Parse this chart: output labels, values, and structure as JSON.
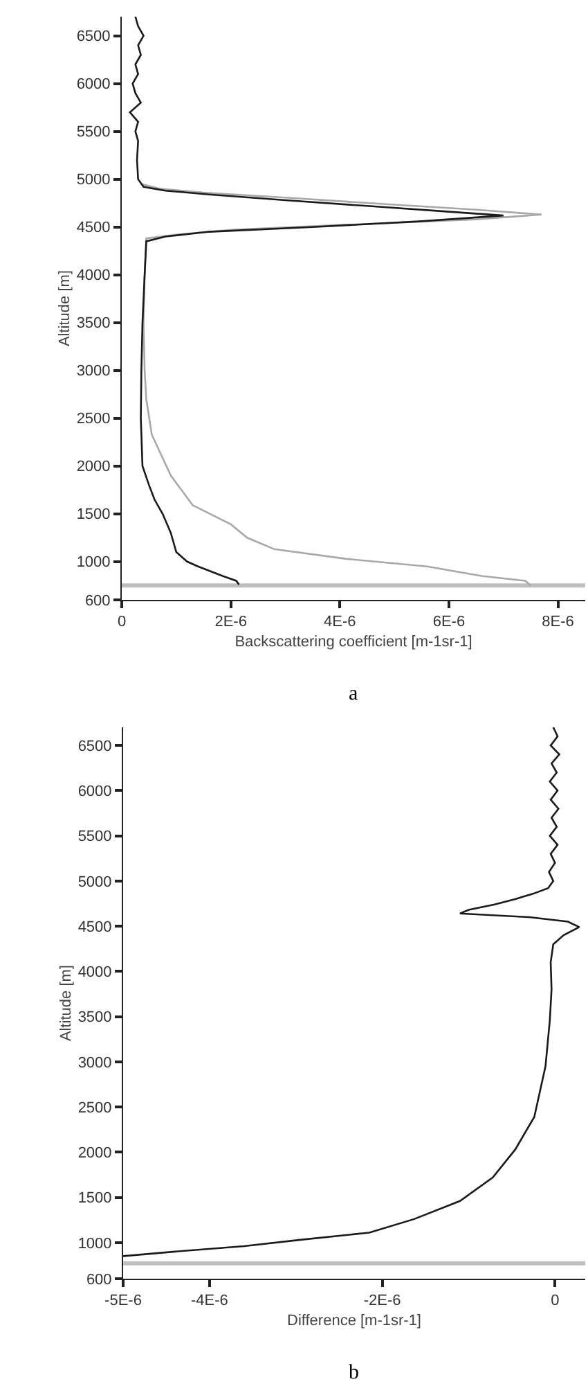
{
  "chart_data": [
    {
      "type": "line",
      "orientation": "horizontal",
      "xlabel": "Backscattering coefficient [m-1sr-1]",
      "ylabel": "Altitude [m]",
      "annotations": [
        "a"
      ],
      "xlim": [
        0,
        8.5e-06
      ],
      "xticks": [
        0,
        {
          "value": 2e-06,
          "label": "2E-6"
        },
        {
          "value": 4e-06,
          "label": "4E-6"
        },
        {
          "value": 6e-06,
          "label": "6E-6"
        },
        {
          "value": 8e-06,
          "label": "8E-6"
        }
      ],
      "ylim": [
        600,
        6700
      ],
      "yticks": [
        600,
        1000,
        1500,
        2000,
        2500,
        3000,
        3500,
        4000,
        4500,
        5000,
        5500,
        6000,
        6500
      ],
      "grid": false,
      "marker": "none",
      "line_style": "solid",
      "ref_lines": [
        {
          "axis": "y",
          "value": 750,
          "label": null,
          "color": "#c0c0c0"
        }
      ],
      "series": [
        {
          "color": "#a8a8a8",
          "x": [
            750,
            800,
            850,
            950,
            1030,
            1130,
            1250,
            1390,
            1590,
            1900,
            2330,
            2700,
            3000,
            3500,
            4000,
            4380,
            4420,
            4470,
            4520,
            4580,
            4630,
            4680,
            4740,
            4800,
            4860,
            4900,
            4950
          ],
          "values": [
            7.5e-06,
            7.4e-06,
            6.6e-06,
            5.6e-06,
            4.1e-06,
            2.8e-06,
            2.3e-06,
            2e-06,
            1.3e-06,
            9e-07,
            5.5e-07,
            4.5e-07,
            4.2e-07,
            4e-07,
            4.2e-07,
            4.5e-07,
            1e-06,
            2e-06,
            4e-06,
            6.5e-06,
            7.7e-06,
            6.5e-06,
            4.8e-06,
            3.2e-06,
            1.5e-06,
            7e-07,
            3.5e-07
          ]
        },
        {
          "color": "#1a1a1a",
          "x": [
            760,
            800,
            850,
            950,
            1000,
            1100,
            1300,
            1500,
            1650,
            1800,
            2000,
            2500,
            3000,
            3500,
            4000,
            4350,
            4400,
            4450,
            4500,
            4560,
            4620,
            4660,
            4720,
            4780,
            4840,
            4880,
            4920,
            5000,
            5200,
            5400,
            5500,
            5600,
            5700,
            5800,
            5900,
            6000,
            6100,
            6200,
            6300,
            6400,
            6500,
            6600,
            6700
          ],
          "values": [
            2.15e-06,
            2.1e-06,
            1.85e-06,
            1.4e-06,
            1.2e-06,
            1e-06,
            9e-07,
            7.5e-07,
            6e-07,
            5e-07,
            3.8e-07,
            3.5e-07,
            3.6e-07,
            3.8e-07,
            4.2e-07,
            4.5e-07,
            8e-07,
            1.6e-06,
            3.5e-06,
            5.5e-06,
            7e-06,
            6e-06,
            4.5e-06,
            3e-06,
            1.6e-06,
            8e-07,
            4e-07,
            3e-07,
            2.8e-07,
            3e-07,
            2.5e-07,
            3e-07,
            1.5e-07,
            3.5e-07,
            2.5e-07,
            2e-07,
            3e-07,
            2.5e-07,
            3.5e-07,
            3e-07,
            4e-07,
            3e-07,
            2.5e-07
          ]
        }
      ]
    },
    {
      "type": "line",
      "orientation": "horizontal",
      "xlabel": "Difference [m-1sr-1]",
      "ylabel": "Altitude [m]",
      "annotations": [
        "b"
      ],
      "xlim": [
        -5e-06,
        3.5e-07
      ],
      "xticks": [
        {
          "value": -5e-06,
          "label": "-5E-6"
        },
        {
          "value": -4e-06,
          "label": "-4E-6"
        },
        {
          "value": -2e-06,
          "label": "-2E-6"
        },
        0
      ],
      "ylim": [
        600,
        6700
      ],
      "yticks": [
        600,
        1000,
        1500,
        2000,
        2500,
        3000,
        3500,
        4000,
        4500,
        5000,
        5500,
        6000,
        6500
      ],
      "grid": false,
      "marker": "none",
      "line_style": "solid",
      "ref_lines": [
        {
          "axis": "y",
          "value": 770,
          "label": null,
          "color": "#c0c0c0"
        }
      ],
      "series": [
        {
          "color": "#1a1a1a",
          "x": [
            850,
            900,
            960,
            1030,
            1110,
            1260,
            1460,
            1720,
            2030,
            2390,
            2950,
            3460,
            3800,
            4100,
            4300,
            4400,
            4490,
            4550,
            4600,
            4640,
            4680,
            4740,
            4800,
            4860,
            4920,
            5000,
            5100,
            5200,
            5300,
            5400,
            5500,
            5600,
            5700,
            5800,
            5900,
            6000,
            6100,
            6200,
            6300,
            6400,
            6500,
            6600,
            6700
          ],
          "values": [
            -5e-06,
            -4.4e-06,
            -3.6e-06,
            -2.95e-06,
            -2.15e-06,
            -1.63e-06,
            -1.1e-06,
            -7.2e-07,
            -4.6e-07,
            -2.4e-07,
            -1.1e-07,
            -6e-08,
            -4e-08,
            -5e-08,
            -2e-08,
            1e-07,
            2.8e-07,
            1.5e-07,
            -3e-07,
            -1.1e-06,
            -1e-06,
            -7e-07,
            -4.6e-07,
            -2.5e-07,
            -8e-08,
            -2e-08,
            -7e-08,
            0.0,
            -5e-08,
            3e-08,
            -6e-08,
            2e-08,
            -4e-08,
            4e-08,
            -5e-08,
            3e-08,
            -6e-08,
            2e-08,
            -4e-08,
            5e-08,
            -5e-08,
            3e-08,
            -2e-08
          ]
        }
      ]
    }
  ]
}
